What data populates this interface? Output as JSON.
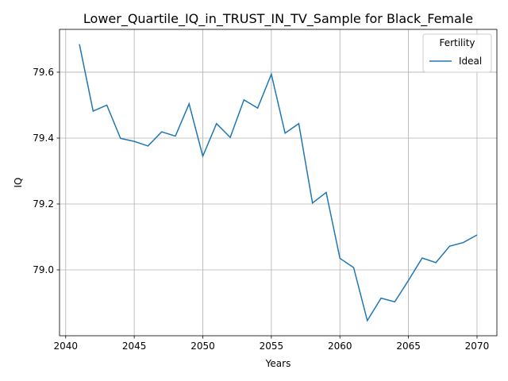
{
  "chart_data": {
    "type": "line",
    "title": "Lower_Quartile_IQ_in_TRUST_IN_TV_Sample for Black_Female",
    "xlabel": "Years",
    "ylabel": "IQ",
    "xlim": [
      2039.55,
      2071.45
    ],
    "ylim": [
      78.8,
      79.73
    ],
    "xticks": [
      2040,
      2045,
      2050,
      2055,
      2060,
      2065,
      2070
    ],
    "xtick_labels": [
      "2040",
      "2045",
      "2050",
      "2055",
      "2060",
      "2065",
      "2070"
    ],
    "yticks": [
      79.0,
      79.2,
      79.4,
      79.6
    ],
    "ytick_labels": [
      "79.0",
      "79.2",
      "79.4",
      "79.6"
    ],
    "grid": true,
    "legend": {
      "title": "Fertility",
      "placement": "top-right"
    },
    "x": [
      2041,
      2042,
      2043,
      2044,
      2045,
      2046,
      2047,
      2048,
      2049,
      2050,
      2051,
      2052,
      2053,
      2054,
      2055,
      2056,
      2057,
      2058,
      2059,
      2060,
      2061,
      2062,
      2063,
      2064,
      2065,
      2066,
      2067,
      2068,
      2069,
      2070
    ],
    "series": [
      {
        "name": "Ideal",
        "color": "#1f77b4",
        "values": [
          79.685,
          79.482,
          79.5,
          79.399,
          79.39,
          79.376,
          79.419,
          79.406,
          79.504,
          79.345,
          79.444,
          79.402,
          79.516,
          79.491,
          79.594,
          79.415,
          79.444,
          79.203,
          79.235,
          79.035,
          79.007,
          78.846,
          78.914,
          78.903,
          78.968,
          79.036,
          79.022,
          79.072,
          79.083,
          79.106
        ]
      }
    ]
  }
}
